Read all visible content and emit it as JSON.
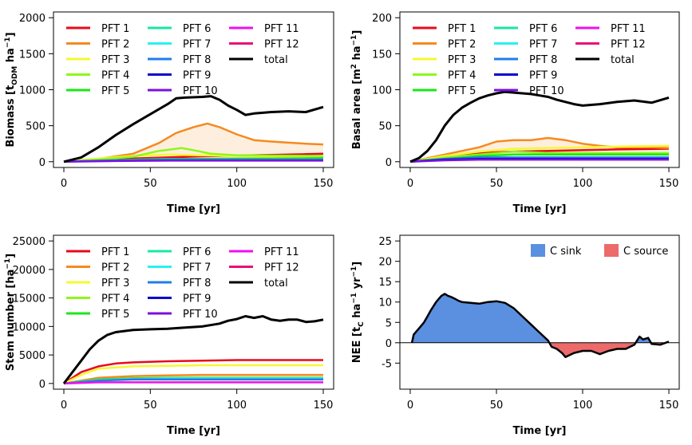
{
  "pft_legend": [
    {
      "label": "PFT 1",
      "color": "#e8091c"
    },
    {
      "label": "PFT 2",
      "color": "#f58a1f"
    },
    {
      "label": "PFT 3",
      "color": "#f7f733"
    },
    {
      "label": "PFT 4",
      "color": "#8ef71d"
    },
    {
      "label": "PFT 5",
      "color": "#1ae81a"
    },
    {
      "label": "PFT 6",
      "color": "#1ae8a0"
    },
    {
      "label": "PFT 7",
      "color": "#2af0f0"
    },
    {
      "label": "PFT 8",
      "color": "#1f7ee8"
    },
    {
      "label": "PFT 9",
      "color": "#0a0acc"
    },
    {
      "label": "PFT 10",
      "color": "#7a10e0"
    },
    {
      "label": "PFT 11",
      "color": "#ee10ee"
    },
    {
      "label": "PFT 12",
      "color": "#e8107a"
    },
    {
      "label": "total",
      "color": "#000000"
    }
  ],
  "chart_data": [
    {
      "type": "line",
      "xlabel": "Time [yr]",
      "ylabel": "Biomass [t_ODM ha^-1]",
      "ylabel_parts": {
        "main": "Biomass [t",
        "sub": "ODM",
        "mid": "ha",
        "sup": "−1",
        "end": "]"
      },
      "xlim": [
        0,
        150
      ],
      "ylim": [
        0,
        2000
      ],
      "xticks": [
        0,
        50,
        100,
        150
      ],
      "yticks": [
        0,
        500,
        1000,
        1500,
        2000
      ],
      "legend": "top-left",
      "series": [
        {
          "name": "PFT 1",
          "color": "#e8091c",
          "x": [
            0,
            20,
            40,
            60,
            80,
            100,
            120,
            140,
            150
          ],
          "y": [
            0,
            20,
            45,
            60,
            75,
            85,
            95,
            105,
            110
          ]
        },
        {
          "name": "PFT 2",
          "color": "#f58a1f",
          "x": [
            0,
            20,
            40,
            55,
            65,
            75,
            83,
            90,
            100,
            110,
            120,
            140,
            150
          ],
          "y": [
            0,
            40,
            110,
            260,
            400,
            480,
            530,
            480,
            380,
            300,
            280,
            250,
            240
          ],
          "shade": true
        },
        {
          "name": "PFT 3",
          "color": "#f7f733",
          "x": [
            0,
            20,
            40,
            60,
            80,
            100,
            120,
            150
          ],
          "y": [
            0,
            45,
            80,
            100,
            90,
            80,
            70,
            60
          ]
        },
        {
          "name": "PFT 4",
          "color": "#8ef71d",
          "x": [
            0,
            20,
            40,
            55,
            62,
            68,
            75,
            85,
            100,
            150
          ],
          "y": [
            0,
            30,
            70,
            150,
            170,
            190,
            160,
            110,
            90,
            80
          ]
        },
        {
          "name": "PFT 5",
          "color": "#1ae81a",
          "x": [
            0,
            20,
            40,
            60,
            80,
            100,
            120,
            150
          ],
          "y": [
            0,
            15,
            30,
            40,
            40,
            45,
            45,
            50
          ]
        },
        {
          "name": "PFT 8",
          "color": "#1f7ee8",
          "x": [
            0,
            30,
            60,
            90,
            120,
            150
          ],
          "y": [
            0,
            20,
            30,
            30,
            30,
            30
          ]
        },
        {
          "name": "PFT 10",
          "color": "#7a10e0",
          "x": [
            0,
            30,
            60,
            90,
            120,
            150
          ],
          "y": [
            0,
            10,
            15,
            15,
            15,
            15
          ]
        },
        {
          "name": "total",
          "color": "#000000",
          "x": [
            0,
            10,
            20,
            30,
            40,
            50,
            60,
            65,
            70,
            80,
            85,
            90,
            95,
            100,
            105,
            110,
            120,
            130,
            140,
            150
          ],
          "y": [
            0,
            60,
            200,
            370,
            520,
            660,
            800,
            880,
            890,
            900,
            910,
            860,
            780,
            720,
            650,
            670,
            690,
            700,
            690,
            760
          ]
        }
      ]
    },
    {
      "type": "line",
      "xlabel": "Time [yr]",
      "ylabel": "Basal area [m^2 ha^-1]",
      "ylabel_parts": {
        "main": "Basal area [m",
        "sub": "",
        "sup2": "2",
        "mid": "ha",
        "sup": "−1",
        "end": "]"
      },
      "xlim": [
        0,
        150
      ],
      "ylim": [
        0,
        200
      ],
      "xticks": [
        0,
        50,
        100,
        150
      ],
      "yticks": [
        0,
        50,
        100,
        150,
        200
      ],
      "legend": "top-left",
      "series": [
        {
          "name": "PFT 1",
          "color": "#e8091c",
          "x": [
            0,
            20,
            40,
            60,
            80,
            100,
            120,
            150
          ],
          "y": [
            0,
            6,
            12,
            14,
            15,
            16,
            17,
            18
          ]
        },
        {
          "name": "PFT 2",
          "color": "#f58a1f",
          "x": [
            0,
            20,
            40,
            50,
            60,
            70,
            80,
            90,
            100,
            110,
            120,
            140,
            150
          ],
          "y": [
            0,
            10,
            20,
            28,
            30,
            30,
            33,
            30,
            25,
            22,
            20,
            20,
            19
          ],
          "shade": true
        },
        {
          "name": "PFT 3",
          "color": "#f7f733",
          "x": [
            0,
            20,
            40,
            60,
            80,
            100,
            120,
            150
          ],
          "y": [
            0,
            8,
            14,
            18,
            19,
            20,
            21,
            22
          ]
        },
        {
          "name": "PFT 4",
          "color": "#8ef71d",
          "x": [
            0,
            20,
            40,
            60,
            80,
            100,
            120,
            150
          ],
          "y": [
            0,
            6,
            10,
            14,
            12,
            12,
            12,
            12
          ]
        },
        {
          "name": "PFT 5",
          "color": "#1ae81a",
          "x": [
            0,
            20,
            40,
            60,
            80,
            100,
            120,
            150
          ],
          "y": [
            0,
            4,
            8,
            10,
            10,
            10,
            10,
            10
          ]
        },
        {
          "name": "PFT 8",
          "color": "#1f7ee8",
          "x": [
            0,
            20,
            40,
            60,
            80,
            100,
            150
          ],
          "y": [
            0,
            4,
            6,
            6,
            6,
            6,
            6
          ]
        },
        {
          "name": "PFT 9",
          "color": "#0a0acc",
          "x": [
            0,
            20,
            40,
            60,
            100,
            150
          ],
          "y": [
            0,
            3,
            4,
            4,
            4,
            4
          ]
        },
        {
          "name": "PFT 10",
          "color": "#7a10e0",
          "x": [
            0,
            20,
            40,
            60,
            100,
            150
          ],
          "y": [
            0,
            2,
            3,
            3,
            3,
            3
          ]
        },
        {
          "name": "total",
          "color": "#000000",
          "x": [
            0,
            5,
            10,
            15,
            20,
            25,
            30,
            35,
            40,
            45,
            50,
            55,
            60,
            65,
            70,
            75,
            80,
            85,
            90,
            95,
            100,
            110,
            120,
            130,
            140,
            150
          ],
          "y": [
            0,
            5,
            15,
            30,
            50,
            65,
            75,
            82,
            88,
            92,
            95,
            97,
            96,
            95,
            94,
            92,
            90,
            86,
            83,
            80,
            78,
            80,
            83,
            85,
            82,
            89
          ]
        }
      ]
    },
    {
      "type": "line",
      "xlabel": "Time [yr]",
      "ylabel": "Stem number [ha^-1]",
      "ylabel_parts": {
        "main": "Stem number [ha",
        "sub": "",
        "mid": "",
        "sup": "−1",
        "end": "]"
      },
      "xlim": [
        0,
        150
      ],
      "ylim": [
        0,
        25000
      ],
      "xticks": [
        0,
        50,
        100,
        150
      ],
      "yticks": [
        0,
        5000,
        10000,
        15000,
        20000,
        25000
      ],
      "legend": "top-left",
      "series": [
        {
          "name": "PFT 1",
          "color": "#e8091c",
          "x": [
            0,
            10,
            20,
            30,
            40,
            60,
            80,
            100,
            120,
            150
          ],
          "y": [
            0,
            2000,
            3000,
            3500,
            3700,
            3900,
            4000,
            4100,
            4100,
            4100
          ]
        },
        {
          "name": "PFT 2",
          "color": "#f58a1f",
          "x": [
            0,
            20,
            40,
            60,
            80,
            100,
            120,
            150
          ],
          "y": [
            0,
            1000,
            1300,
            1400,
            1500,
            1500,
            1500,
            1500
          ],
          "shade": true
        },
        {
          "name": "PFT 3",
          "color": "#f7f733",
          "x": [
            0,
            10,
            20,
            40,
            60,
            80,
            100,
            120,
            150
          ],
          "y": [
            0,
            1500,
            2600,
            3000,
            3100,
            3200,
            3200,
            3200,
            3200
          ]
        },
        {
          "name": "PFT 5",
          "color": "#1ae81a",
          "x": [
            0,
            20,
            40,
            60,
            100,
            150
          ],
          "y": [
            0,
            700,
            900,
            1000,
            1000,
            1000
          ]
        },
        {
          "name": "PFT 7",
          "color": "#2af0f0",
          "x": [
            0,
            20,
            40,
            60,
            100,
            150
          ],
          "y": [
            0,
            600,
            800,
            900,
            900,
            900
          ]
        },
        {
          "name": "PFT 8",
          "color": "#1f7ee8",
          "x": [
            0,
            20,
            40,
            60,
            100,
            150
          ],
          "y": [
            0,
            500,
            700,
            700,
            700,
            700
          ]
        },
        {
          "name": "PFT 11",
          "color": "#ee10ee",
          "x": [
            0,
            20,
            40,
            60,
            100,
            150
          ],
          "y": [
            0,
            200,
            200,
            200,
            200,
            200
          ]
        },
        {
          "name": "total",
          "color": "#000000",
          "x": [
            0,
            5,
            10,
            15,
            20,
            25,
            30,
            35,
            40,
            50,
            60,
            70,
            80,
            90,
            95,
            100,
            105,
            110,
            115,
            120,
            125,
            130,
            135,
            140,
            145,
            150
          ],
          "y": [
            0,
            2000,
            4000,
            6000,
            7500,
            8500,
            9000,
            9200,
            9400,
            9500,
            9600,
            9800,
            10000,
            10500,
            11000,
            11300,
            11800,
            11500,
            11800,
            11200,
            11000,
            11200,
            11200,
            10800,
            10900,
            11200
          ]
        }
      ]
    },
    {
      "type": "area",
      "xlabel": "Time [yr]",
      "ylabel": "NEE [t_C ha^-1 yr^-1]",
      "ylabel_parts": {
        "main": "NEE [t",
        "sub": "C",
        "mid": "ha",
        "sup": "−1",
        "mid2": "yr",
        "sup2b": "−1",
        "end": "]"
      },
      "xlim": [
        0,
        150
      ],
      "ylim": [
        -10,
        25
      ],
      "xticks": [
        0,
        50,
        100,
        150
      ],
      "yticks": [
        -5,
        0,
        5,
        10,
        15,
        20,
        25
      ],
      "legend": "top-right",
      "legend_items": [
        {
          "label": "C sink",
          "color": "#5b8fe0"
        },
        {
          "label": "C source",
          "color": "#ec6a6a"
        }
      ],
      "series": [
        {
          "name": "NEE",
          "color": "#000000",
          "x": [
            1,
            2,
            5,
            8,
            10,
            12,
            15,
            18,
            20,
            22,
            24,
            26,
            28,
            30,
            35,
            40,
            45,
            50,
            55,
            60,
            65,
            70,
            75,
            80,
            82,
            85,
            88,
            90,
            95,
            100,
            105,
            110,
            115,
            120,
            125,
            130,
            133,
            135,
            138,
            140,
            145,
            150
          ],
          "y": [
            0,
            2,
            3.5,
            5,
            6.5,
            8,
            10,
            11.5,
            12,
            11.5,
            11.2,
            10.8,
            10.3,
            10,
            9.8,
            9.6,
            10,
            10.2,
            9.8,
            8.5,
            6.5,
            4.5,
            2.5,
            0.5,
            -1,
            -1.5,
            -2.5,
            -3.5,
            -2.5,
            -2,
            -2,
            -2.8,
            -2,
            -1.5,
            -1.5,
            -0.5,
            1.5,
            0.8,
            1.2,
            -0.3,
            -0.5,
            0.3
          ]
        }
      ]
    }
  ]
}
